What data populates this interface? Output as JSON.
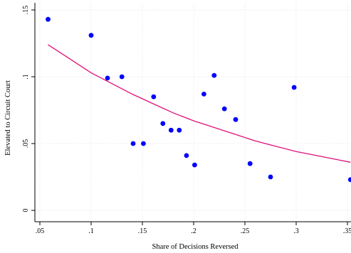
{
  "chart_data": {
    "type": "scatter",
    "title": "",
    "xlabel": "Share of Decisions Reversed",
    "ylabel": "Elevated to Circuit Court",
    "xlim": [
      0.05,
      0.35
    ],
    "ylim": [
      0,
      0.15
    ],
    "x_ticks": [
      0.05,
      0.1,
      0.15,
      0.2,
      0.25,
      0.3,
      0.35
    ],
    "x_tick_labels": [
      ".05",
      ".1",
      ".15",
      ".2",
      ".25",
      ".3",
      ".35"
    ],
    "y_ticks": [
      0,
      0.05,
      0.1,
      0.15
    ],
    "y_tick_labels": [
      "0",
      ".05",
      ".1",
      ".15"
    ],
    "grid": true,
    "colors": {
      "points": "#0000ff",
      "fit": "#e0107a"
    },
    "series": [
      {
        "type": "scatter",
        "x": [
          0.058,
          0.1,
          0.116,
          0.13,
          0.141,
          0.151,
          0.161,
          0.17,
          0.178,
          0.186,
          0.193,
          0.201,
          0.21,
          0.22,
          0.23,
          0.241,
          0.255,
          0.275,
          0.298,
          0.353
        ],
        "y": [
          0.143,
          0.131,
          0.099,
          0.1,
          0.05,
          0.05,
          0.085,
          0.065,
          0.06,
          0.06,
          0.041,
          0.034,
          0.087,
          0.101,
          0.076,
          0.068,
          0.035,
          0.025,
          0.092,
          0.023
        ]
      },
      {
        "type": "line",
        "x": [
          0.058,
          0.08,
          0.1,
          0.12,
          0.14,
          0.16,
          0.18,
          0.2,
          0.22,
          0.24,
          0.26,
          0.28,
          0.3,
          0.32,
          0.34,
          0.353
        ],
        "y": [
          0.124,
          0.113,
          0.103,
          0.095,
          0.087,
          0.08,
          0.073,
          0.067,
          0.062,
          0.057,
          0.052,
          0.048,
          0.044,
          0.041,
          0.038,
          0.036
        ]
      }
    ]
  }
}
